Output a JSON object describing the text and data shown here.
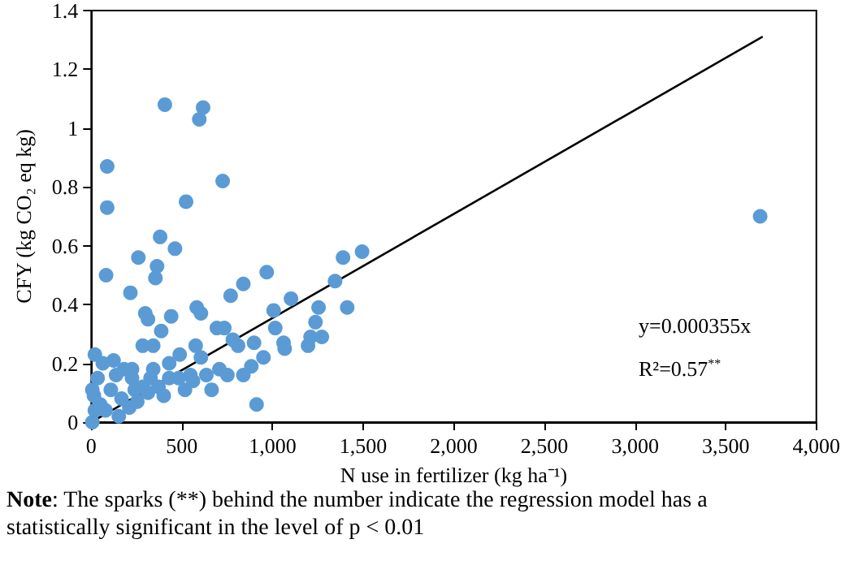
{
  "chart_data": {
    "type": "scatter",
    "xlabel": "N use in fertilizer (kg ha⁻¹)",
    "ylabel": "CFY (kg CO₂ eq kg)",
    "xlim": [
      0,
      4000
    ],
    "ylim": [
      0,
      1.4
    ],
    "xticks": [
      0,
      500,
      {
        "value": 1000,
        "label": "1,000"
      },
      {
        "value": 1500,
        "label": "1,500"
      },
      {
        "value": 2000,
        "label": "2,000"
      },
      {
        "value": 2500,
        "label": "2,500"
      },
      {
        "value": 3000,
        "label": "3,000"
      },
      {
        "value": 3500,
        "label": "3,500"
      },
      {
        "value": 4000,
        "label": "4,000"
      }
    ],
    "yticks": [
      0,
      0.2,
      0.4,
      0.6,
      0.8,
      1,
      1.2,
      1.4
    ],
    "grid": false,
    "marker": "circle",
    "annotations": [
      "y=0.000355x",
      "R²=0.57$^{**}$",
      "Note: The sparks (**) behind the number indicate the regression model has a statistically significant in the level of p < 0.01"
    ],
    "series": [
      {
        "color": "#5b9bd5",
        "x": [
          88,
          88,
          82,
          406,
          596,
          617,
          725,
          523,
          380,
          462,
          260,
          363,
          354,
          216,
          441,
          582,
          605,
          769,
          839,
          968,
          1006,
          1102,
          1254,
          1345,
          1389,
          1494,
          1412,
          1237,
          1210,
          1272,
          1196,
          1015,
          1061,
          1067,
          950,
          912,
          883,
          839,
          693,
          734,
          781,
          810,
          898,
          664,
          635,
          298,
          313,
          386,
          284,
          342,
          430,
          488,
          576,
          605,
          547,
          482,
          20,
          64,
          123,
          181,
          225,
          284,
          371,
          430,
          400,
          254,
          152,
          20,
          6,
          50,
          6,
          35,
          108,
          167,
          79,
          210,
          327,
          342,
          517,
          561,
          707,
          751,
          15,
          137,
          240,
          313,
          225,
          3690
        ],
        "values": [
          0.87,
          0.73,
          0.5,
          1.08,
          1.03,
          1.07,
          0.82,
          0.75,
          0.63,
          0.59,
          0.56,
          0.53,
          0.49,
          0.44,
          0.36,
          0.39,
          0.37,
          0.43,
          0.47,
          0.51,
          0.38,
          0.42,
          0.39,
          0.48,
          0.56,
          0.58,
          0.39,
          0.34,
          0.29,
          0.29,
          0.26,
          0.32,
          0.27,
          0.25,
          0.22,
          0.06,
          0.19,
          0.16,
          0.32,
          0.32,
          0.28,
          0.26,
          0.27,
          0.11,
          0.16,
          0.37,
          0.35,
          0.31,
          0.26,
          0.26,
          0.2,
          0.23,
          0.26,
          0.22,
          0.16,
          0.15,
          0.23,
          0.2,
          0.21,
          0.18,
          0.15,
          0.12,
          0.12,
          0.15,
          0.09,
          0.07,
          0.02,
          0.04,
          0,
          0.06,
          0.11,
          0.15,
          0.11,
          0.08,
          0.04,
          0.05,
          0.15,
          0.18,
          0.11,
          0.14,
          0.18,
          0.16,
          0.09,
          0.16,
          0.11,
          0.1,
          0.18,
          0.7
        ]
      },
      {
        "type": "line",
        "color": "#000000",
        "marker": "none",
        "x": [
          0,
          3700
        ],
        "values": [
          0,
          1.31
        ]
      }
    ]
  }
}
